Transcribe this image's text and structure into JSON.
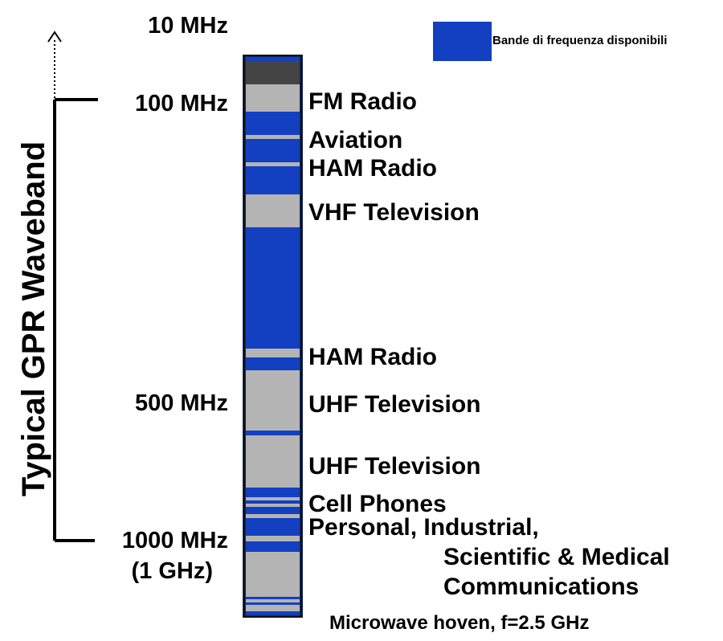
{
  "legend": {
    "label": "Bande di frequenza disponibili",
    "color": "#1240c0"
  },
  "waveband_title": "Typical GPR Waveband",
  "frequency_labels": [
    {
      "id": "10",
      "text": "10 MHz"
    },
    {
      "id": "100",
      "text": "100 MHz"
    },
    {
      "id": "500",
      "text": "500 MHz"
    },
    {
      "id": "1000a",
      "text": "1000 MHz"
    },
    {
      "id": "1000b",
      "text": "(1 GHz)"
    }
  ],
  "services": [
    {
      "id": "fm",
      "text": "FM Radio"
    },
    {
      "id": "aviation",
      "text": "Aviation"
    },
    {
      "id": "ham1",
      "text": "HAM Radio"
    },
    {
      "id": "vhf",
      "text": "VHF Television"
    },
    {
      "id": "ham2",
      "text": "HAM Radio"
    },
    {
      "id": "uhf1",
      "text": "UHF Television"
    },
    {
      "id": "uhf2",
      "text": "UHF Television"
    },
    {
      "id": "cell",
      "text": "Cell Phones"
    },
    {
      "id": "ism1",
      "text": "Personal, Industrial,"
    },
    {
      "id": "ism2",
      "text": "Scientific & Medical"
    },
    {
      "id": "ism3",
      "text": "Communications"
    },
    {
      "id": "microwave",
      "text": "Microwave hoven, f=2.5 GHz"
    }
  ],
  "colors": {
    "available": "#1240c0",
    "occupied": "#b4b4b4",
    "top_block": "#444444",
    "outline": "#111111"
  }
}
